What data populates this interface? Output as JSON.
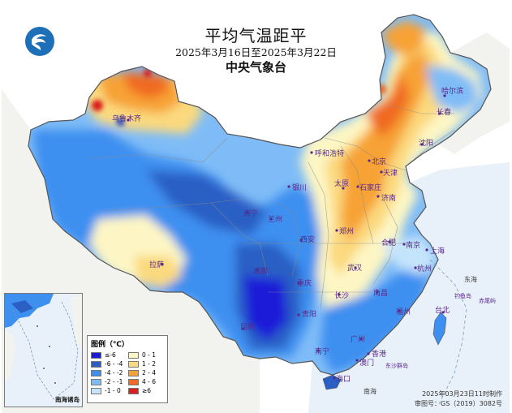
{
  "title": "平均气温距平",
  "period": "2025年3月16日至2025年3月22日",
  "issuer": "中央气象台",
  "logo_icon": "cma-logo-icon",
  "legend": {
    "title": "图例（℃）",
    "items": [
      {
        "label": "≤-6",
        "color": "#1a1ad8"
      },
      {
        "label": "0 - 1",
        "color": "#fdf6c4"
      },
      {
        "label": "-6 - -4",
        "color": "#2b5fc4"
      },
      {
        "label": "1 - 2",
        "color": "#fbd97e"
      },
      {
        "label": "-4 - -2",
        "color": "#3d8ff0"
      },
      {
        "label": "2 - 4",
        "color": "#f7a235"
      },
      {
        "label": "-2 - -1",
        "color": "#7fbcf7"
      },
      {
        "label": "4 - 6",
        "color": "#f06a22"
      },
      {
        "label": "-1 - 0",
        "color": "#c4e4fb"
      },
      {
        "label": "≥6",
        "color": "#d81e1e"
      }
    ]
  },
  "cities": [
    {
      "name": "哈尔滨"
    },
    {
      "name": "长春"
    },
    {
      "name": "沈阳"
    },
    {
      "name": "呼和浩特"
    },
    {
      "name": "北京"
    },
    {
      "name": "天津"
    },
    {
      "name": "石家庄"
    },
    {
      "name": "太原"
    },
    {
      "name": "济南"
    },
    {
      "name": "银川"
    },
    {
      "name": "西宁"
    },
    {
      "name": "兰州"
    },
    {
      "name": "郑州"
    },
    {
      "name": "西安"
    },
    {
      "name": "合肥"
    },
    {
      "name": "南京"
    },
    {
      "name": "上海"
    },
    {
      "name": "武汉"
    },
    {
      "name": "杭州"
    },
    {
      "name": "拉萨"
    },
    {
      "name": "成都"
    },
    {
      "name": "重庆"
    },
    {
      "name": "长沙"
    },
    {
      "name": "南昌"
    },
    {
      "name": "福州"
    },
    {
      "name": "贵阳"
    },
    {
      "name": "台北"
    },
    {
      "name": "昆明"
    },
    {
      "name": "南宁"
    },
    {
      "name": "广州"
    },
    {
      "name": "香港"
    },
    {
      "name": "澳门"
    },
    {
      "name": "海口"
    },
    {
      "name": "乌鲁木齐"
    }
  ],
  "labels": {
    "sea_east": "东海",
    "sea_south": "南海",
    "diaoyu": "钓鱼岛",
    "chiwei": "赤尾屿",
    "dongsha": "东沙群岛",
    "inset": "南海诸岛"
  },
  "footer": {
    "made": "2025年03月23日11时制作",
    "review": "审图号：GS（2019）3082号"
  }
}
